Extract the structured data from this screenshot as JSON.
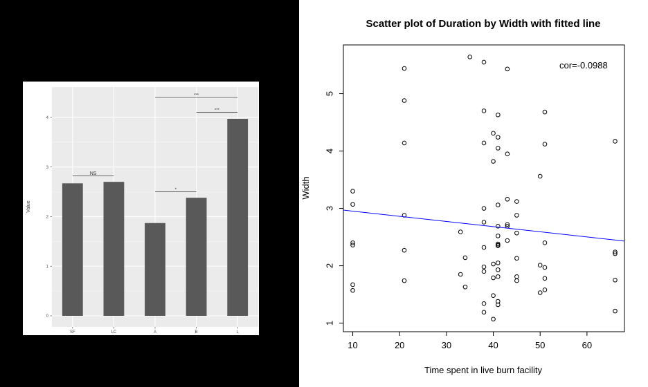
{
  "chart_data": [
    {
      "type": "bar",
      "categories": [
        "SF",
        "LC",
        "A",
        "B",
        "L"
      ],
      "values": [
        2.67,
        2.7,
        1.87,
        2.38,
        3.97
      ],
      "title": "",
      "xlabel": "",
      "ylabel": "Value",
      "ylim": [
        0,
        4.4
      ],
      "yticks": [
        0,
        1,
        2,
        3,
        4
      ],
      "grid": true,
      "annotations": [
        {
          "text": "NS",
          "from": "SF",
          "to": "LC",
          "y": 2.82
        },
        {
          "text": "*",
          "from": "A",
          "to": "B",
          "y": 2.5
        },
        {
          "text": "***",
          "from": "B",
          "to": "L",
          "y": 4.1
        },
        {
          "text": "***",
          "from": "A",
          "to": "L",
          "y": 4.4
        }
      ]
    },
    {
      "type": "scatter",
      "title": "Scatter plot of Duration by Width with fitted line",
      "xlabel": "Time spent in live burn facility",
      "ylabel": "Width",
      "xlim": [
        8,
        68
      ],
      "ylim": [
        0.85,
        5.85
      ],
      "xticks": [
        10,
        20,
        30,
        40,
        50,
        60
      ],
      "yticks": [
        1,
        2,
        3,
        4,
        5
      ],
      "grid": false,
      "annotation": "cor=-0.0988",
      "fit_line": {
        "x": [
          8,
          68
        ],
        "y": [
          2.97,
          2.43
        ],
        "color": "#0000ff"
      },
      "points": [
        [
          10,
          3.3
        ],
        [
          10,
          3.07
        ],
        [
          10,
          2.4
        ],
        [
          10,
          2.36
        ],
        [
          10,
          1.67
        ],
        [
          10,
          1.57
        ],
        [
          21,
          5.44
        ],
        [
          21,
          4.88
        ],
        [
          21,
          4.14
        ],
        [
          21,
          2.88
        ],
        [
          21,
          2.27
        ],
        [
          21,
          1.74
        ],
        [
          33,
          2.59
        ],
        [
          33,
          1.85
        ],
        [
          34,
          2.14
        ],
        [
          34,
          1.63
        ],
        [
          35,
          5.64
        ],
        [
          38,
          5.55
        ],
        [
          38,
          4.7
        ],
        [
          38,
          4.14
        ],
        [
          38,
          3.0
        ],
        [
          38,
          2.76
        ],
        [
          38,
          2.32
        ],
        [
          38,
          1.98
        ],
        [
          38,
          1.9
        ],
        [
          38,
          1.34
        ],
        [
          38,
          1.19
        ],
        [
          40,
          4.31
        ],
        [
          40,
          3.82
        ],
        [
          40,
          2.03
        ],
        [
          40,
          1.79
        ],
        [
          40,
          1.48
        ],
        [
          40,
          1.07
        ],
        [
          41,
          4.63
        ],
        [
          41,
          4.24
        ],
        [
          41,
          4.05
        ],
        [
          41,
          3.06
        ],
        [
          41,
          2.69
        ],
        [
          41,
          2.52
        ],
        [
          41,
          2.38
        ],
        [
          41,
          2.36
        ],
        [
          41,
          2.35
        ],
        [
          41,
          2.05
        ],
        [
          41,
          1.93
        ],
        [
          41,
          1.81
        ],
        [
          41,
          1.38
        ],
        [
          41,
          1.32
        ],
        [
          43,
          5.43
        ],
        [
          43,
          3.95
        ],
        [
          43,
          3.16
        ],
        [
          43,
          2.72
        ],
        [
          43,
          2.69
        ],
        [
          43,
          2.44
        ],
        [
          45,
          3.12
        ],
        [
          45,
          2.88
        ],
        [
          45,
          2.57
        ],
        [
          45,
          2.13
        ],
        [
          45,
          1.81
        ],
        [
          45,
          1.74
        ],
        [
          50,
          3.56
        ],
        [
          50,
          2.01
        ],
        [
          50,
          1.53
        ],
        [
          51,
          4.68
        ],
        [
          51,
          4.12
        ],
        [
          51,
          2.4
        ],
        [
          51,
          1.97
        ],
        [
          51,
          1.78
        ],
        [
          51,
          1.58
        ],
        [
          66,
          4.17
        ],
        [
          66,
          2.24
        ],
        [
          66,
          2.21
        ],
        [
          66,
          1.75
        ],
        [
          66,
          1.21
        ]
      ]
    }
  ]
}
